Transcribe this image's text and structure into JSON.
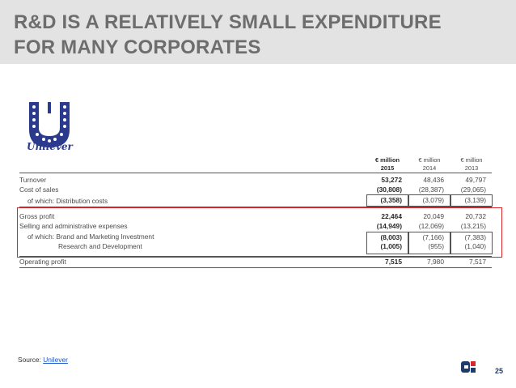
{
  "slide": {
    "title_line1": "R&D IS A RELATIVELY SMALL EXPENDITURE",
    "title_line2": "FOR MANY CORPORATES",
    "page_number": "25"
  },
  "logo": {
    "text": "Unilever"
  },
  "table": {
    "headers": [
      {
        "unit": "€ million",
        "year": "2015"
      },
      {
        "unit": "€ million",
        "year": "2014"
      },
      {
        "unit": "€ million",
        "year": "2013"
      }
    ],
    "rows": [
      {
        "label": "Turnover",
        "values": [
          "53,272",
          "48,436",
          "49,797"
        ]
      },
      {
        "label": "Cost of sales",
        "values": [
          "(30,808)",
          "(28,387)",
          "(29,065)"
        ]
      },
      {
        "label": "of which: Distribution costs",
        "values": [
          "(3,358)",
          "(3,079)",
          "(3,139)"
        ]
      },
      {
        "label": "Gross profit",
        "values": [
          "22,464",
          "20,049",
          "20,732"
        ]
      },
      {
        "label": "Selling and administrative expenses",
        "values": [
          "(14,949)",
          "(12,069)",
          "(13,215)"
        ]
      },
      {
        "label": "of which: Brand and Marketing Investment",
        "values": [
          "(8,003)",
          "(7,166)",
          "(7,383)"
        ]
      },
      {
        "label": "Research and Development",
        "values": [
          "(1,005)",
          "(955)",
          "(1,040)"
        ]
      },
      {
        "label": "Operating profit",
        "values": [
          "7,515",
          "7,980",
          "7,517"
        ]
      }
    ]
  },
  "footer": {
    "source_label": "Source:",
    "source_link": "Unilever"
  },
  "colors": {
    "title_band": "#e3e3e3",
    "title_text": "#6d6d6d",
    "highlight_box": "#d9262b",
    "brand_blue": "#1f3b6e"
  }
}
